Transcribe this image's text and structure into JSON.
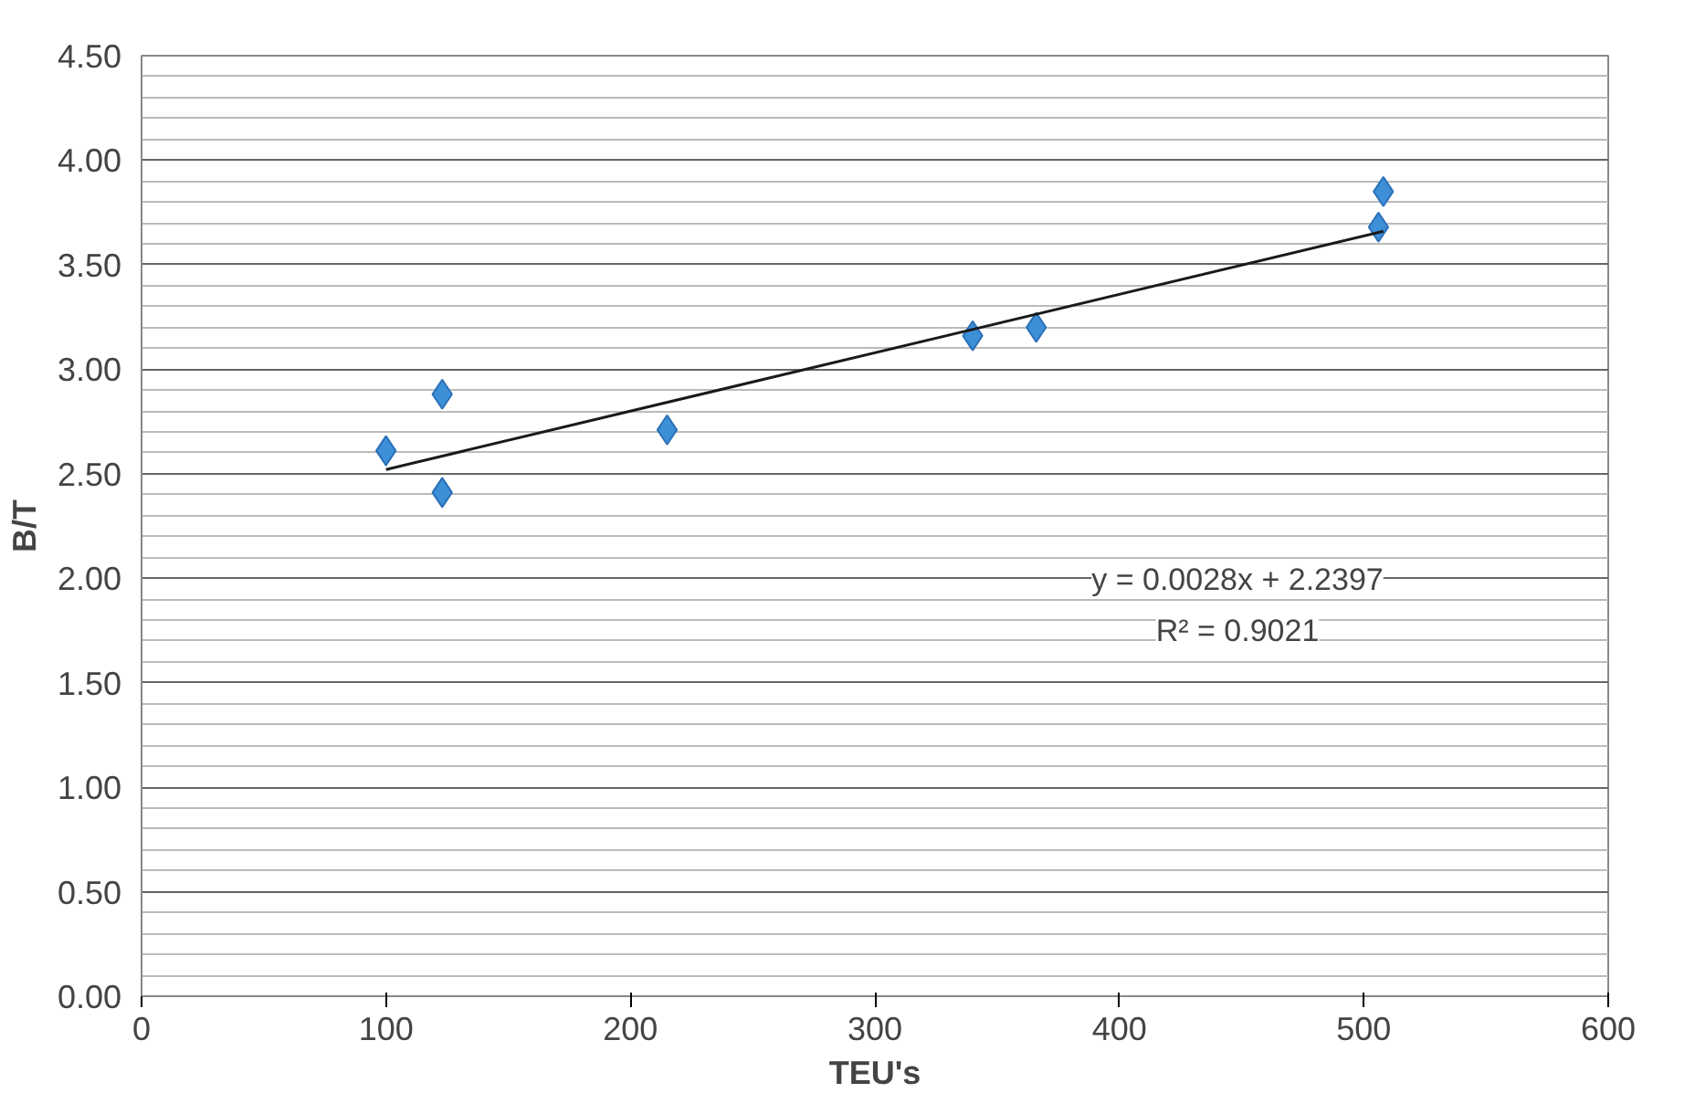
{
  "chart_data": {
    "type": "scatter",
    "xlabel": "TEU's",
    "ylabel": "B/T",
    "xlim": [
      0,
      600
    ],
    "xticks": [
      0,
      100,
      200,
      300,
      400,
      500,
      600
    ],
    "ylim": [
      0,
      4.5
    ],
    "yticks": [
      {
        "value": 0,
        "label": "0.00"
      },
      {
        "value": 0.5,
        "label": "0.50"
      },
      {
        "value": 1,
        "label": "1.00"
      },
      {
        "value": 1.5,
        "label": "1.50"
      },
      {
        "value": 2,
        "label": "2.00"
      },
      {
        "value": 2.5,
        "label": "2.50"
      },
      {
        "value": 3,
        "label": "3.00"
      },
      {
        "value": 3.5,
        "label": "3.50"
      },
      {
        "value": 4,
        "label": "4.00"
      },
      {
        "value": 4.5,
        "label": "4.50"
      }
    ],
    "grid": "y",
    "series": [
      {
        "marker": "diamond",
        "color": "#3d8fd6",
        "x": [
          100,
          123,
          123,
          215,
          340,
          366,
          508,
          506
        ],
        "values": [
          2.61,
          2.88,
          2.41,
          2.71,
          3.16,
          3.2,
          3.85,
          3.68
        ]
      },
      {
        "type": "line",
        "marker": "none",
        "color": "#1a1a1a",
        "x": [
          100,
          508
        ],
        "values": [
          2.52,
          3.66
        ]
      }
    ],
    "annotations": [
      "y = 0.0028x + 2.2397",
      "R² = 0.9021"
    ]
  }
}
